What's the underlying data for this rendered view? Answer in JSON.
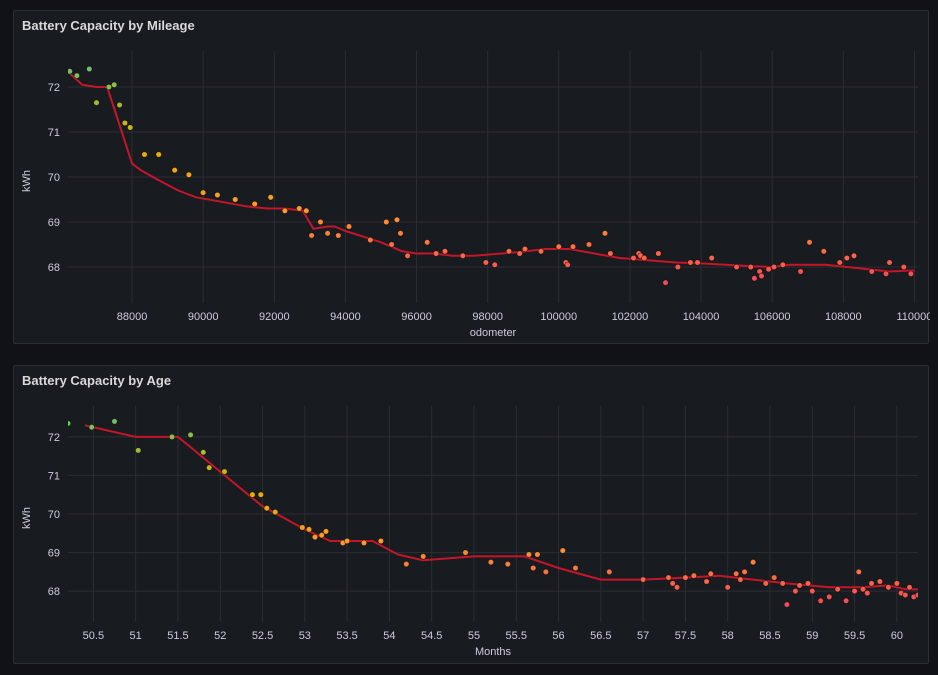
{
  "chart_data": [
    {
      "type": "scatter",
      "title": "Battery Capacity by Mileage",
      "xlabel": "odometer",
      "ylabel": "kWh",
      "xlim": [
        86200,
        110100
      ],
      "ylim": [
        67.2,
        72.8
      ],
      "xticks": [
        88000,
        90000,
        92000,
        94000,
        96000,
        98000,
        100000,
        102000,
        104000,
        106000,
        108000,
        110000
      ],
      "yticks": [
        68,
        69,
        70,
        71,
        72
      ],
      "grid": true,
      "series": [
        {
          "kind": "points",
          "x": [
            86250,
            86450,
            86800,
            87000,
            87350,
            87500,
            87650,
            87800,
            87950,
            88350,
            88750,
            89200,
            89600,
            90000,
            90400,
            90900,
            91450,
            91900,
            92300,
            92700,
            92900,
            93050,
            93300,
            93500,
            93800,
            94100,
            94700,
            95150,
            95300,
            95450,
            95550,
            95750,
            96300,
            96550,
            96800,
            97300,
            97950,
            98200,
            98600,
            98900,
            99050,
            99500,
            100000,
            100200,
            100250,
            100400,
            100850,
            101300,
            101450,
            102100,
            102250,
            102300,
            102400,
            102800,
            103000,
            103350,
            103700,
            103900,
            104300,
            105000,
            105400,
            105500,
            105650,
            105700,
            105900,
            106050,
            106300,
            106800,
            107050,
            107450,
            107900,
            108100,
            108300,
            108800,
            109200,
            109300,
            109700,
            109900
          ],
          "y": [
            72.35,
            72.25,
            72.4,
            71.65,
            72.0,
            72.05,
            71.6,
            71.2,
            71.1,
            70.5,
            70.5,
            70.15,
            70.05,
            69.65,
            69.6,
            69.5,
            69.4,
            69.55,
            69.25,
            69.3,
            69.25,
            68.7,
            69.0,
            68.75,
            68.7,
            68.9,
            68.6,
            69.0,
            68.5,
            69.05,
            68.75,
            68.25,
            68.55,
            68.3,
            68.35,
            68.25,
            68.1,
            68.05,
            68.35,
            68.3,
            68.4,
            68.35,
            68.45,
            68.1,
            68.05,
            68.45,
            68.5,
            68.75,
            68.3,
            68.2,
            68.3,
            68.25,
            68.2,
            68.3,
            67.65,
            68.0,
            68.1,
            68.1,
            68.2,
            68.0,
            68.0,
            67.75,
            67.9,
            67.8,
            67.95,
            68.0,
            68.05,
            67.9,
            68.55,
            68.35,
            68.1,
            68.2,
            68.25,
            67.9,
            67.85,
            68.1,
            68.0,
            67.85
          ],
          "color_scale": [
            "#73bf69",
            "#e0b400",
            "#ff9830",
            "#f2495c"
          ]
        },
        {
          "kind": "line",
          "color": "#c4162a",
          "x": [
            86250,
            86600,
            87000,
            87300,
            87550,
            88000,
            88250,
            88700,
            89300,
            89800,
            90500,
            91200,
            91800,
            92300,
            92800,
            93100,
            93500,
            93700,
            94000,
            94600,
            95000,
            95600,
            96000,
            96500,
            97000,
            97600,
            98400,
            99100,
            99600,
            100300,
            101000,
            101700,
            102500,
            103300,
            104000,
            104700,
            105400,
            106000,
            106500,
            107000,
            107500,
            108100,
            108700,
            109300,
            109800,
            110000
          ],
          "y": [
            72.3,
            72.05,
            72.0,
            72.0,
            71.4,
            70.3,
            70.15,
            69.95,
            69.7,
            69.55,
            69.45,
            69.35,
            69.3,
            69.3,
            69.25,
            68.85,
            68.9,
            68.9,
            68.8,
            68.65,
            68.55,
            68.35,
            68.3,
            68.3,
            68.25,
            68.25,
            68.3,
            68.35,
            68.4,
            68.4,
            68.3,
            68.2,
            68.15,
            68.1,
            68.08,
            68.05,
            68.02,
            68.0,
            68.05,
            68.05,
            68.05,
            68.0,
            67.95,
            67.9,
            67.92,
            67.92
          ]
        }
      ]
    },
    {
      "type": "scatter",
      "title": "Battery Capacity by Age",
      "xlabel": "Months",
      "ylabel": "kWh",
      "xlim": [
        50.2,
        60.25
      ],
      "ylim": [
        67.2,
        72.8
      ],
      "xticks": [
        50.5,
        51,
        51.5,
        52,
        52.5,
        53,
        53.5,
        54,
        54.5,
        55,
        55.5,
        56,
        56.5,
        57,
        57.5,
        58,
        58.5,
        59,
        59.5,
        60
      ],
      "yticks": [
        68,
        69,
        70,
        71,
        72
      ],
      "grid": true,
      "series": [
        {
          "kind": "points",
          "x": [
            50.2,
            50.48,
            50.75,
            51.03,
            51.43,
            51.65,
            51.8,
            51.87,
            52.05,
            52.38,
            52.48,
            52.55,
            52.65,
            52.97,
            53.05,
            53.12,
            53.2,
            53.25,
            53.45,
            53.5,
            53.7,
            53.9,
            54.2,
            54.4,
            54.9,
            55.2,
            55.4,
            55.65,
            55.7,
            55.75,
            55.85,
            56.05,
            56.2,
            56.6,
            57.0,
            57.3,
            57.35,
            57.4,
            57.5,
            57.6,
            57.75,
            57.8,
            58.0,
            58.1,
            58.15,
            58.2,
            58.3,
            58.45,
            58.55,
            58.65,
            58.7,
            58.8,
            58.85,
            58.95,
            59.0,
            59.1,
            59.2,
            59.3,
            59.4,
            59.5,
            59.55,
            59.6,
            59.65,
            59.7,
            59.8,
            59.9,
            60.0,
            60.05,
            60.1,
            60.15,
            60.2,
            60.25
          ],
          "y": [
            72.35,
            72.25,
            72.4,
            71.65,
            72.0,
            72.05,
            71.6,
            71.2,
            71.1,
            70.5,
            70.5,
            70.15,
            70.05,
            69.65,
            69.6,
            69.4,
            69.45,
            69.55,
            69.25,
            69.3,
            69.25,
            69.3,
            68.7,
            68.9,
            69.0,
            68.75,
            68.7,
            68.95,
            68.6,
            68.95,
            68.5,
            69.05,
            68.6,
            68.5,
            68.3,
            68.35,
            68.2,
            68.1,
            68.35,
            68.4,
            68.25,
            68.45,
            68.1,
            68.45,
            68.3,
            68.5,
            68.75,
            68.2,
            68.35,
            68.2,
            67.65,
            68.0,
            68.15,
            68.2,
            68.0,
            67.75,
            67.85,
            68.05,
            67.75,
            68.0,
            68.5,
            68.05,
            67.95,
            68.2,
            68.25,
            68.1,
            68.2,
            67.95,
            67.9,
            68.1,
            67.85,
            67.9
          ],
          "color_scale": [
            "#73bf69",
            "#e0b400",
            "#ff9830",
            "#f2495c"
          ]
        },
        {
          "kind": "line",
          "color": "#c4162a",
          "x": [
            50.4,
            50.7,
            51.0,
            51.5,
            52.0,
            52.5,
            53.0,
            53.3,
            53.8,
            54.1,
            54.4,
            55.0,
            55.6,
            56.0,
            56.5,
            57.0,
            57.5,
            57.9,
            58.3,
            58.7,
            59.2,
            59.6,
            59.9,
            60.1,
            60.25
          ],
          "y": [
            72.3,
            72.15,
            72.0,
            72.0,
            71.1,
            70.2,
            69.6,
            69.3,
            69.3,
            68.95,
            68.8,
            68.9,
            68.9,
            68.6,
            68.3,
            68.3,
            68.35,
            68.4,
            68.3,
            68.2,
            68.1,
            68.1,
            68.15,
            68.05,
            68.05
          ]
        }
      ]
    }
  ]
}
